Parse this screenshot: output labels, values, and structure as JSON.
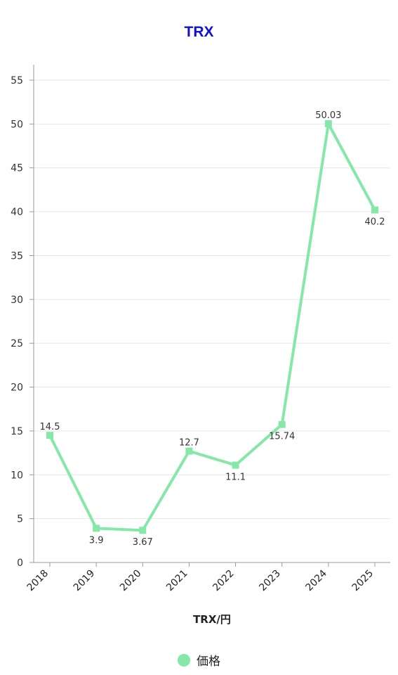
{
  "chart_data": {
    "type": "line",
    "title": "TRX",
    "xlabel": "TRX/円",
    "ylabel": "",
    "categories": [
      "2018",
      "2019",
      "2020",
      "2021",
      "2022",
      "2023",
      "2024",
      "2025"
    ],
    "series": [
      {
        "name": "価格",
        "values": [
          14.5,
          3.9,
          3.67,
          12.7,
          11.1,
          15.74,
          50.03,
          40.2
        ],
        "data_labels": [
          "14.5",
          "3.9",
          "3.67",
          "12.7",
          "11.1",
          "15.74",
          "50.03",
          "40.2"
        ],
        "label_positions": [
          "above",
          "below",
          "below",
          "above",
          "below",
          "below",
          "above",
          "below"
        ]
      }
    ],
    "ylim": [
      0,
      55
    ],
    "yticks": [
      0,
      5,
      10,
      15,
      20,
      25,
      30,
      35,
      40,
      45,
      50,
      55
    ],
    "grid": true,
    "legend": "bottom-center"
  },
  "colors": {
    "title": "#1010d0",
    "series": "#86e8a8",
    "grid": "#e6e6e6",
    "axis": "#999999"
  }
}
